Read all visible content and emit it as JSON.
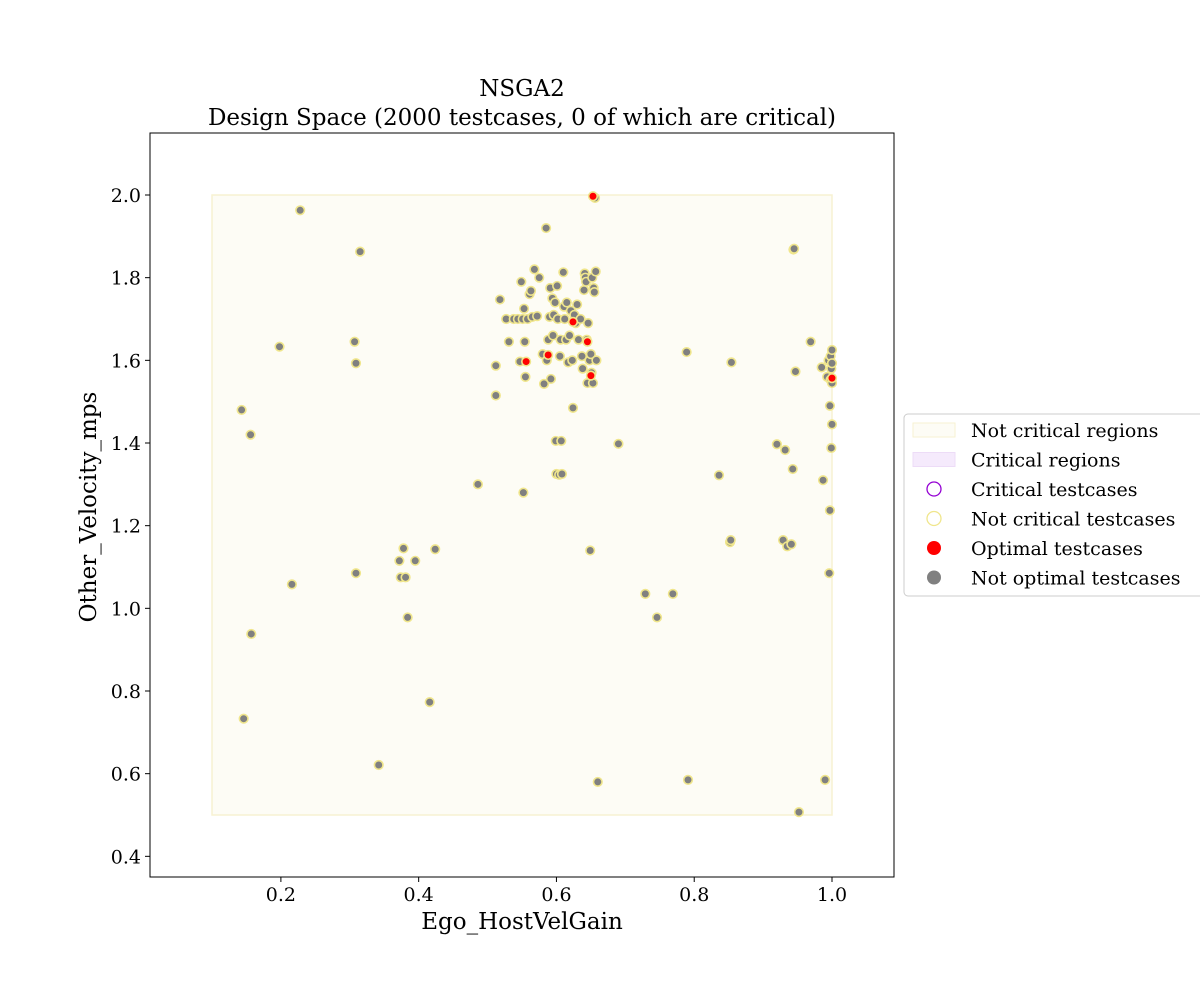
{
  "chart_data": {
    "type": "scatter",
    "title": "NSGA2",
    "subtitle": "Design Space (2000 testcases, 0 of which are critical)",
    "xlabel": "Ego_HostVelGain",
    "ylabel": "Other_Velocity_mps",
    "xlim": [
      0.01,
      1.09
    ],
    "ylim": [
      0.35,
      2.15
    ],
    "xticks": [
      0.2,
      0.4,
      0.6,
      0.8,
      1.0
    ],
    "yticks": [
      0.4,
      0.6,
      0.8,
      1.0,
      1.2,
      1.4,
      1.6,
      1.8,
      2.0
    ],
    "xtick_labels": [
      "0.2",
      "0.4",
      "0.6",
      "0.8",
      "1.0"
    ],
    "ytick_labels": [
      "0.4",
      "0.6",
      "0.8",
      "1.0",
      "1.2",
      "1.4",
      "1.6",
      "1.8",
      "2.0"
    ],
    "grid": false,
    "legend_position": "right",
    "colors": {
      "not_critical_region_fill": "#fdfcf5",
      "not_critical_region_edge": "#f7f2d2",
      "critical_region_fill": "#f5eafc",
      "critical_marker": "#9400d3",
      "not_critical_marker": "#f0e68c",
      "optimal": "#ff0000",
      "not_optimal": "#808080"
    },
    "regions": [
      {
        "kind": "not_critical",
        "x_range": [
          0.1,
          1.0
        ],
        "y_range": [
          0.5,
          2.0
        ]
      }
    ],
    "legend": [
      {
        "label": "Not critical regions",
        "kind": "region-not-critical"
      },
      {
        "label": "Critical regions",
        "kind": "region-critical"
      },
      {
        "label": "Critical testcases",
        "kind": "marker-critical"
      },
      {
        "label": "Not critical testcases",
        "kind": "marker-not-critical"
      },
      {
        "label": "Optimal testcases",
        "kind": "marker-optimal"
      },
      {
        "label": "Not optimal testcases",
        "kind": "marker-not-optimal"
      }
    ],
    "series": [
      {
        "name": "Not optimal testcases",
        "points": [
          [
            0.228,
            1.963
          ],
          [
            0.315,
            1.863
          ],
          [
            0.198,
            1.633
          ],
          [
            0.307,
            1.645
          ],
          [
            0.309,
            1.593
          ],
          [
            0.143,
            1.48
          ],
          [
            0.156,
            1.42
          ],
          [
            0.216,
            1.058
          ],
          [
            0.157,
            0.938
          ],
          [
            0.146,
            0.733
          ],
          [
            0.309,
            1.085
          ],
          [
            0.342,
            0.621
          ],
          [
            0.372,
            1.115
          ],
          [
            0.378,
            1.145
          ],
          [
            0.374,
            1.075
          ],
          [
            0.381,
            1.075
          ],
          [
            0.395,
            1.115
          ],
          [
            0.384,
            0.978
          ],
          [
            0.416,
            0.773
          ],
          [
            0.424,
            1.143
          ],
          [
            0.486,
            1.3
          ],
          [
            0.552,
            1.28
          ],
          [
            0.512,
            1.515
          ],
          [
            0.512,
            1.587
          ],
          [
            0.518,
            1.747
          ],
          [
            0.527,
            1.7
          ],
          [
            0.531,
            1.645
          ],
          [
            0.538,
            1.7
          ],
          [
            0.544,
            1.7
          ],
          [
            0.547,
            1.597
          ],
          [
            0.549,
            1.79
          ],
          [
            0.551,
            1.7
          ],
          [
            0.553,
            1.725
          ],
          [
            0.554,
            1.645
          ],
          [
            0.555,
            1.56
          ],
          [
            0.558,
            1.7
          ],
          [
            0.561,
            1.76
          ],
          [
            0.563,
            1.768
          ],
          [
            0.565,
            1.705
          ],
          [
            0.568,
            1.82
          ],
          [
            0.572,
            1.707
          ],
          [
            0.575,
            1.8
          ],
          [
            0.58,
            1.615
          ],
          [
            0.582,
            1.543
          ],
          [
            0.585,
            1.92
          ],
          [
            0.586,
            1.6
          ],
          [
            0.588,
            1.65
          ],
          [
            0.59,
            1.705
          ],
          [
            0.591,
            1.775
          ],
          [
            0.592,
            1.555
          ],
          [
            0.594,
            1.75
          ],
          [
            0.595,
            1.66
          ],
          [
            0.596,
            1.71
          ],
          [
            0.598,
            1.74
          ],
          [
            0.599,
            1.405
          ],
          [
            0.6,
            1.325
          ],
          [
            0.601,
            1.78
          ],
          [
            0.602,
            1.7
          ],
          [
            0.604,
            1.323
          ],
          [
            0.605,
            1.61
          ],
          [
            0.606,
            1.65
          ],
          [
            0.607,
            1.405
          ],
          [
            0.608,
            1.325
          ],
          [
            0.61,
            1.813
          ],
          [
            0.611,
            1.73
          ],
          [
            0.612,
            1.7
          ],
          [
            0.614,
            1.65
          ],
          [
            0.615,
            1.74
          ],
          [
            0.617,
            1.595
          ],
          [
            0.619,
            1.66
          ],
          [
            0.621,
            1.72
          ],
          [
            0.623,
            1.6
          ],
          [
            0.624,
            1.485
          ],
          [
            0.626,
            1.71
          ],
          [
            0.628,
            1.69
          ],
          [
            0.63,
            1.735
          ],
          [
            0.632,
            1.65
          ],
          [
            0.635,
            1.7
          ],
          [
            0.637,
            1.61
          ],
          [
            0.638,
            1.58
          ],
          [
            0.64,
            1.77
          ],
          [
            0.641,
            1.81
          ],
          [
            0.642,
            1.8
          ],
          [
            0.643,
            1.79
          ],
          [
            0.644,
            1.65
          ],
          [
            0.645,
            1.545
          ],
          [
            0.646,
            1.69
          ],
          [
            0.648,
            1.6
          ],
          [
            0.649,
            1.14
          ],
          [
            0.65,
            1.615
          ],
          [
            0.651,
            1.57
          ],
          [
            0.652,
            1.8
          ],
          [
            0.653,
            1.545
          ],
          [
            0.654,
            1.775
          ],
          [
            0.655,
            1.765
          ],
          [
            0.656,
            1.993
          ],
          [
            0.657,
            1.815
          ],
          [
            0.658,
            1.6
          ],
          [
            0.66,
            0.58
          ],
          [
            0.69,
            1.398
          ],
          [
            0.729,
            1.035
          ],
          [
            0.746,
            0.978
          ],
          [
            0.769,
            1.035
          ],
          [
            0.789,
            1.62
          ],
          [
            0.791,
            0.585
          ],
          [
            0.836,
            1.322
          ],
          [
            0.852,
            1.16
          ],
          [
            0.853,
            1.165
          ],
          [
            0.854,
            1.595
          ],
          [
            0.92,
            1.397
          ],
          [
            0.929,
            1.165
          ],
          [
            0.932,
            1.383
          ],
          [
            0.935,
            1.15
          ],
          [
            0.941,
            1.155
          ],
          [
            0.943,
            1.337
          ],
          [
            0.944,
            1.868
          ],
          [
            0.945,
            1.87
          ],
          [
            0.947,
            1.573
          ],
          [
            0.952,
            0.507
          ],
          [
            0.969,
            1.645
          ],
          [
            0.985,
            1.583
          ],
          [
            0.987,
            1.31
          ],
          [
            0.99,
            0.585
          ],
          [
            0.993,
            1.56
          ],
          [
            0.995,
            1.6
          ],
          [
            0.996,
            1.085
          ],
          [
            0.997,
            1.237
          ],
          [
            0.997,
            1.49
          ],
          [
            0.998,
            1.553
          ],
          [
            0.998,
            1.61
          ],
          [
            0.999,
            1.58
          ],
          [
            0.999,
            1.388
          ],
          [
            1.0,
            1.593
          ],
          [
            1.0,
            1.625
          ],
          [
            1.0,
            1.445
          ],
          [
            1.0,
            1.545
          ]
        ]
      },
      {
        "name": "Optimal testcases",
        "points": [
          [
            0.653,
            1.997
          ],
          [
            0.624,
            1.693
          ],
          [
            0.645,
            1.645
          ],
          [
            0.556,
            1.597
          ],
          [
            0.588,
            1.613
          ],
          [
            0.65,
            1.563
          ],
          [
            1.0,
            1.557
          ]
        ]
      }
    ]
  }
}
